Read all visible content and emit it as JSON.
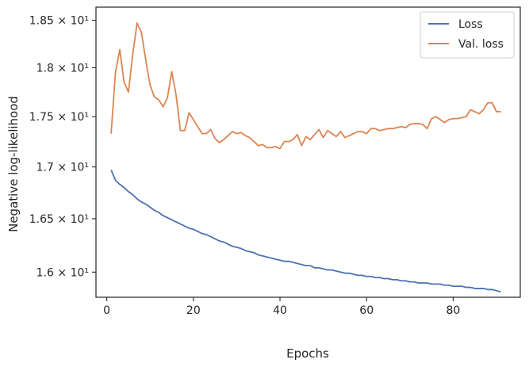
{
  "chart_data": {
    "type": "line",
    "xlabel": "Epochs",
    "ylabel": "Negative log-likelihood",
    "xlim": [
      -2.5,
      95.5
    ],
    "ylim": [
      15.77,
      18.64
    ],
    "yscale": "log",
    "xticks": [
      0,
      20,
      40,
      60,
      80
    ],
    "yticks": [
      {
        "value": 16.0,
        "label": "1.6 × 10¹"
      },
      {
        "value": 16.5,
        "label": "1.65 × 10¹"
      },
      {
        "value": 17.0,
        "label": "1.7 × 10¹"
      },
      {
        "value": 17.5,
        "label": "1.75 × 10¹"
      },
      {
        "value": 18.0,
        "label": "1.8 × 10¹"
      },
      {
        "value": 18.5,
        "label": "1.85 × 10¹"
      }
    ],
    "grid": false,
    "legend_position": "top-right",
    "x": [
      1,
      2,
      3,
      4,
      5,
      6,
      7,
      8,
      9,
      10,
      11,
      12,
      13,
      14,
      15,
      16,
      17,
      18,
      19,
      20,
      21,
      22,
      23,
      24,
      25,
      26,
      27,
      28,
      29,
      30,
      31,
      32,
      33,
      34,
      35,
      36,
      37,
      38,
      39,
      40,
      41,
      42,
      43,
      44,
      45,
      46,
      47,
      48,
      49,
      50,
      51,
      52,
      53,
      54,
      55,
      56,
      57,
      58,
      59,
      60,
      61,
      62,
      63,
      64,
      65,
      66,
      67,
      68,
      69,
      70,
      71,
      72,
      73,
      74,
      75,
      76,
      77,
      78,
      79,
      80,
      81,
      82,
      83,
      84,
      85,
      86,
      87,
      88,
      89,
      90,
      91
    ],
    "series": [
      {
        "name": "Loss",
        "color": "#4c72b0",
        "values": [
          16.97,
          16.87,
          16.83,
          16.8,
          16.76,
          16.73,
          16.69,
          16.66,
          16.64,
          16.61,
          16.58,
          16.56,
          16.53,
          16.51,
          16.49,
          16.47,
          16.45,
          16.43,
          16.41,
          16.4,
          16.38,
          16.36,
          16.35,
          16.33,
          16.31,
          16.29,
          16.28,
          16.26,
          16.24,
          16.23,
          16.22,
          16.2,
          16.19,
          16.18,
          16.16,
          16.15,
          16.14,
          16.13,
          16.12,
          16.11,
          16.1,
          16.1,
          16.09,
          16.08,
          16.07,
          16.06,
          16.06,
          16.04,
          16.04,
          16.03,
          16.02,
          16.02,
          16.01,
          16.0,
          15.99,
          15.99,
          15.98,
          15.97,
          15.97,
          15.96,
          15.96,
          15.95,
          15.95,
          15.94,
          15.94,
          15.93,
          15.93,
          15.92,
          15.92,
          15.91,
          15.91,
          15.9,
          15.9,
          15.9,
          15.89,
          15.89,
          15.89,
          15.88,
          15.88,
          15.87,
          15.87,
          15.87,
          15.86,
          15.86,
          15.85,
          15.85,
          15.85,
          15.84,
          15.84,
          15.83,
          15.82
        ]
      },
      {
        "name": "Val. loss",
        "color": "#dd8452",
        "values": [
          17.33,
          17.95,
          18.19,
          17.85,
          17.75,
          18.14,
          18.47,
          18.37,
          18.08,
          17.82,
          17.7,
          17.67,
          17.6,
          17.69,
          17.96,
          17.72,
          17.36,
          17.36,
          17.54,
          17.47,
          17.4,
          17.33,
          17.33,
          17.37,
          17.28,
          17.24,
          17.27,
          17.31,
          17.35,
          17.33,
          17.34,
          17.31,
          17.29,
          17.25,
          17.21,
          17.22,
          17.19,
          17.19,
          17.2,
          17.18,
          17.25,
          17.25,
          17.27,
          17.32,
          17.21,
          17.3,
          17.27,
          17.32,
          17.37,
          17.29,
          17.36,
          17.33,
          17.3,
          17.35,
          17.29,
          17.31,
          17.33,
          17.35,
          17.35,
          17.33,
          17.38,
          17.38,
          17.36,
          17.37,
          17.38,
          17.38,
          17.39,
          17.4,
          17.39,
          17.42,
          17.43,
          17.43,
          17.42,
          17.38,
          17.48,
          17.5,
          17.47,
          17.44,
          17.47,
          17.48,
          17.48,
          17.49,
          17.5,
          17.57,
          17.55,
          17.53,
          17.57,
          17.64,
          17.64,
          17.55,
          17.55
        ]
      }
    ]
  }
}
